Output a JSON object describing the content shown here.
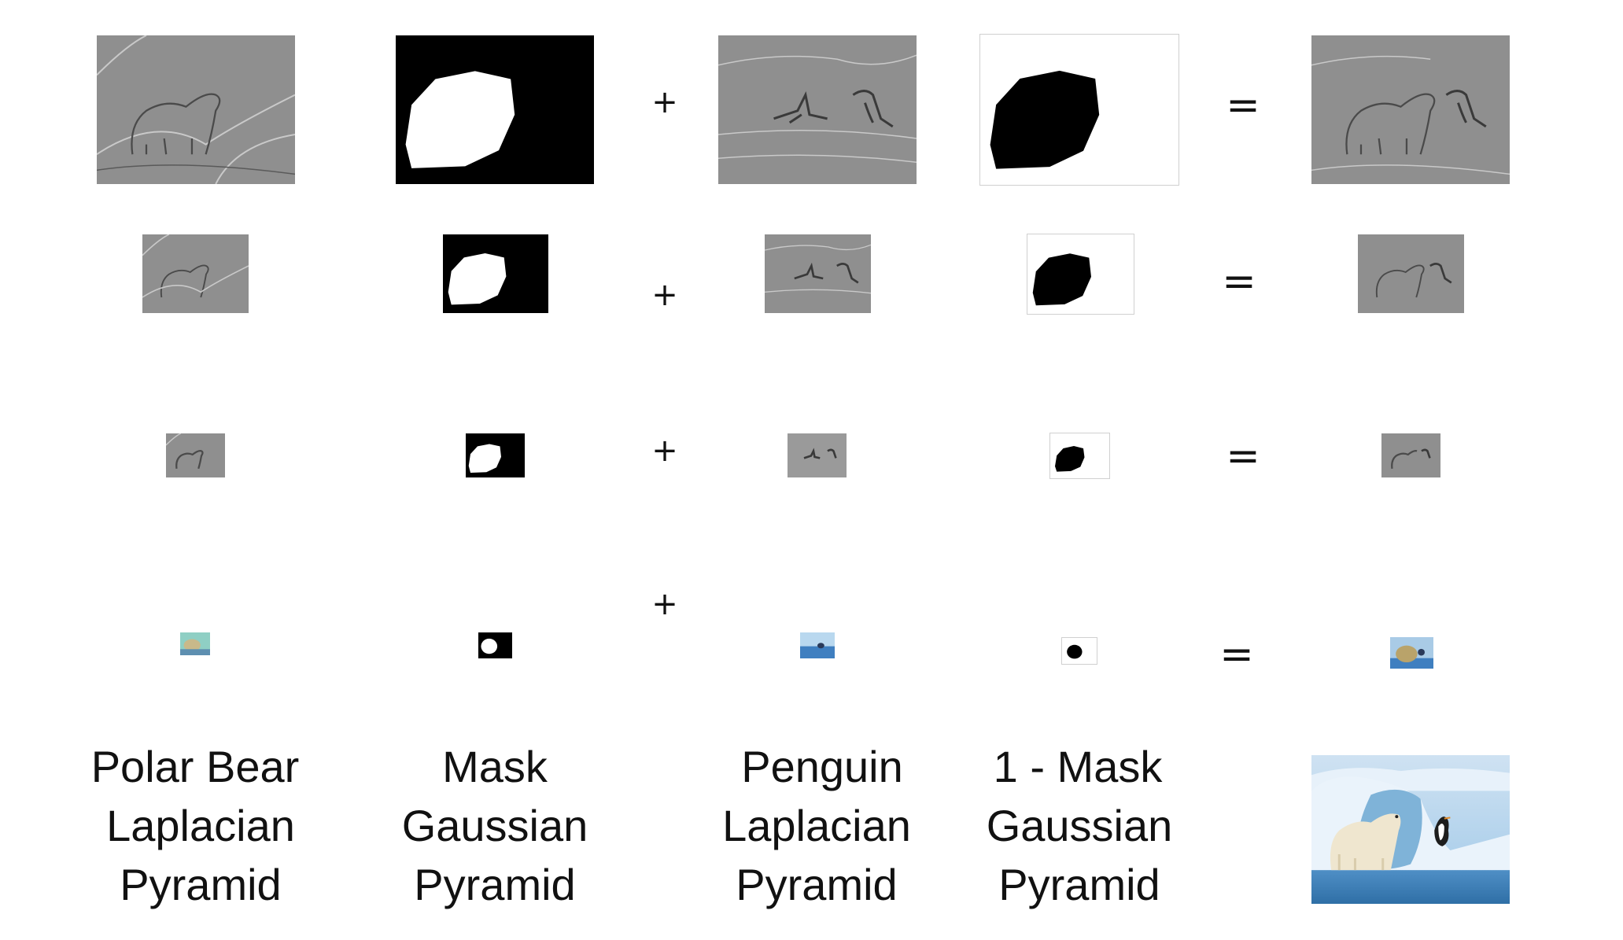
{
  "operators": {
    "plus": "+",
    "equals": "="
  },
  "labels": {
    "polar_bear": [
      "Polar Bear",
      "Laplacian",
      "Pyramid"
    ],
    "mask": [
      "Mask",
      "Gaussian",
      "Pyramid"
    ],
    "penguin": [
      "Penguin",
      "Laplacian",
      "Pyramid"
    ],
    "inverse_mask": [
      "1 - Mask",
      "Gaussian",
      "Pyramid"
    ]
  },
  "colors": {
    "laplacian_gray": "#8f8f8f",
    "edge_dark": "#4a4a4a",
    "edge_light": "#c9c9c9",
    "mask_black": "#000000",
    "mask_white": "#ffffff",
    "ice_blue": "#9fc8e8",
    "sea_blue": "#2f6fa6",
    "bear_cream": "#efe6cf"
  },
  "pyramid_levels": 4
}
